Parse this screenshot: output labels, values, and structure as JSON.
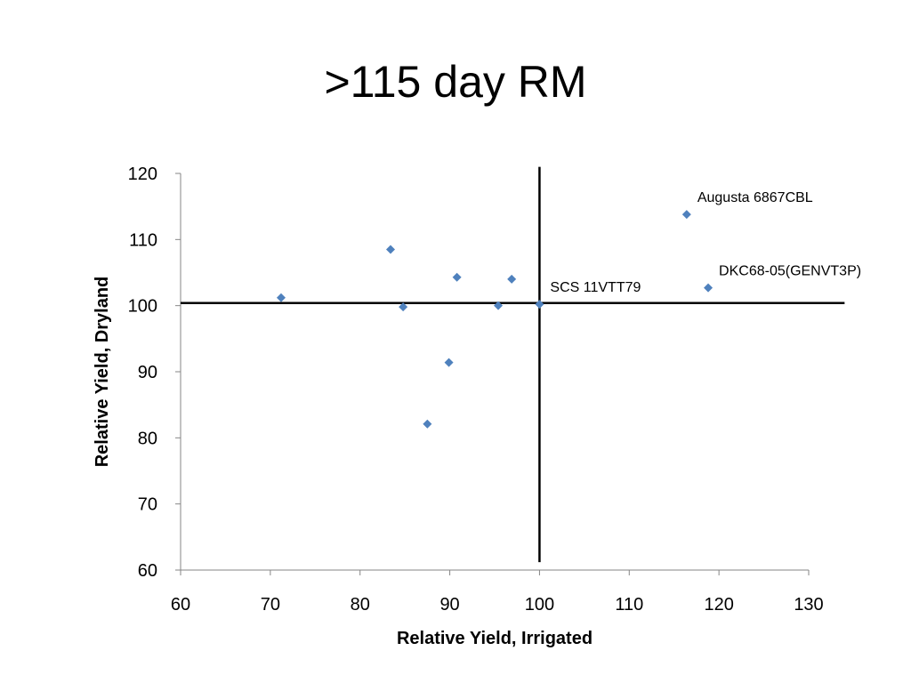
{
  "chart_data": {
    "type": "scatter",
    "title": ">115 day RM",
    "xlabel": "Relative Yield, Irrigated",
    "ylabel": "Relative Yield, Dryland",
    "xlim": [
      60,
      130
    ],
    "ylim": [
      60,
      120
    ],
    "xticks": [
      60,
      70,
      80,
      90,
      100,
      110,
      120,
      130
    ],
    "yticks": [
      60,
      70,
      80,
      90,
      100,
      110,
      120
    ],
    "grid": false,
    "marker_color": "#4F81BD",
    "reference_lines": {
      "vertical_x": 100,
      "horizontal_y": 100.4,
      "vertical_y_range": [
        61.2,
        121
      ],
      "horizontal_x_range": [
        60,
        134
      ]
    },
    "points": [
      {
        "x": 71.2,
        "y": 101.2
      },
      {
        "x": 83.4,
        "y": 108.5
      },
      {
        "x": 84.8,
        "y": 99.8
      },
      {
        "x": 87.5,
        "y": 82.1
      },
      {
        "x": 89.9,
        "y": 91.4
      },
      {
        "x": 90.8,
        "y": 104.3
      },
      {
        "x": 95.4,
        "y": 100.0
      },
      {
        "x": 96.9,
        "y": 104.0
      },
      {
        "x": 100.0,
        "y": 100.2,
        "label": "SCS 11VTT79"
      },
      {
        "x": 116.4,
        "y": 113.8,
        "label": "Augusta 6867CBL"
      },
      {
        "x": 118.8,
        "y": 102.7,
        "label": "DKC68-05(GENVT3P)"
      }
    ]
  }
}
